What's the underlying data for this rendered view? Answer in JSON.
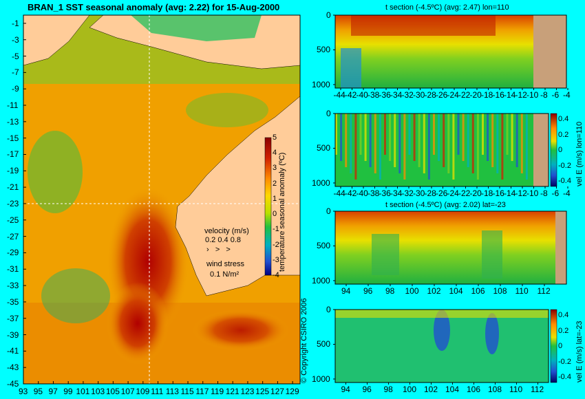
{
  "main_title": "BRAN_1  SST seasonal anomaly (avg: 2.22) for 15-Aug-2000",
  "copyright": "© Copyright CSIRO 2006",
  "colors": {
    "background": "#00ffff",
    "land": "#ffcc99",
    "land_profile": "#c8a07a",
    "guide": "#ffffff"
  },
  "map": {
    "lat_ticks": [
      "-1",
      "-3",
      "-5",
      "-7",
      "-9",
      "-11",
      "-13",
      "-15",
      "-17",
      "-19",
      "-21",
      "-23",
      "-25",
      "-27",
      "-29",
      "-31",
      "-33",
      "-35",
      "-37",
      "-39",
      "-41",
      "-43",
      "-45"
    ],
    "lon_ticks": [
      "93",
      "95",
      "97",
      "99",
      "101",
      "103",
      "105",
      "107",
      "109",
      "111",
      "113",
      "115",
      "117",
      "119",
      "121",
      "123",
      "125",
      "127",
      "129"
    ],
    "lon_range": [
      93,
      130
    ],
    "lat_range": [
      -45,
      0
    ],
    "guide_lon": 109.5,
    "guide_lat": -24,
    "colorbar_label": "temperature seasonal anomaly (ºC)",
    "colorbar_ticks": [
      "5",
      "4",
      "3",
      "2",
      "1",
      "0",
      "-1",
      "-2",
      "-3",
      "-4"
    ],
    "velocity_label": "velocity (m/s)",
    "velocity_scale": "0.2 0.4 0.8",
    "wind_label": "wind stress",
    "wind_scale": "0.1 N/m²"
  },
  "panels": [
    {
      "title": "t section (-4.5ºC) (avg: 2.47) lon=110",
      "x_ticks": [
        "-44",
        "-42",
        "-40",
        "-38",
        "-36",
        "-34",
        "-32",
        "-30",
        "-28",
        "-26",
        "-24",
        "-22",
        "-20",
        "-18",
        "-16",
        "-14",
        "-12",
        "-10",
        "-8",
        "-6",
        "-4"
      ],
      "y_ticks": [
        "0",
        "500",
        "1000"
      ]
    },
    {
      "title": "",
      "x_ticks": [
        "-44",
        "-42",
        "-40",
        "-38",
        "-36",
        "-34",
        "-32",
        "-30",
        "-28",
        "-26",
        "-24",
        "-22",
        "-20",
        "-18",
        "-16",
        "-14",
        "-12",
        "-10",
        "-8",
        "-6",
        "-4"
      ],
      "y_ticks": [
        "0",
        "500",
        "1000"
      ],
      "cb_ticks": [
        "0.4",
        "0.2",
        "0",
        "-0.2",
        "-0.4"
      ],
      "cb_label": "vel E (m/s) lon=110"
    },
    {
      "title": "t section (-4.5ºC) (avg: 2.02) lat=-23",
      "x_ticks": [
        "94",
        "96",
        "98",
        "100",
        "102",
        "104",
        "106",
        "108",
        "110",
        "112"
      ],
      "y_ticks": [
        "0",
        "500",
        "1000"
      ]
    },
    {
      "title": "",
      "x_ticks": [
        "94",
        "96",
        "98",
        "100",
        "102",
        "104",
        "106",
        "108",
        "110",
        "112"
      ],
      "y_ticks": [
        "0",
        "500",
        "1000"
      ],
      "cb_ticks": [
        "0.4",
        "0.2",
        "0",
        "-0.2",
        "-0.4"
      ],
      "cb_label": "vel E (m/s) lat=-23"
    }
  ],
  "chart_data": [
    {
      "type": "heatmap",
      "title": "BRAN_1  SST seasonal anomaly (avg: 2.22) for 15-Aug-2000",
      "xlabel": "",
      "ylabel": "",
      "x_range": [
        93,
        130
      ],
      "y_range": [
        -45,
        0
      ],
      "value_range": [
        -4,
        5
      ],
      "average": 2.22
    },
    {
      "type": "heatmap",
      "title": "t section (-4.5ºC) (avg: 2.47) lon=110",
      "x_range": [
        -45,
        -3
      ],
      "y_range": [
        0,
        1050
      ],
      "average": 2.47
    },
    {
      "type": "heatmap",
      "title": "",
      "x_range": [
        -45,
        -3
      ],
      "y_range": [
        0,
        1050
      ],
      "value_range": [
        -0.4,
        0.4
      ]
    },
    {
      "type": "heatmap",
      "title": "t section (-4.5ºC) (avg: 2.02) lat=-23",
      "x_range": [
        93,
        113
      ],
      "y_range": [
        0,
        1050
      ],
      "average": 2.02
    },
    {
      "type": "heatmap",
      "title": "",
      "x_range": [
        93,
        113
      ],
      "y_range": [
        0,
        1050
      ],
      "value_range": [
        -0.4,
        0.4
      ]
    }
  ]
}
